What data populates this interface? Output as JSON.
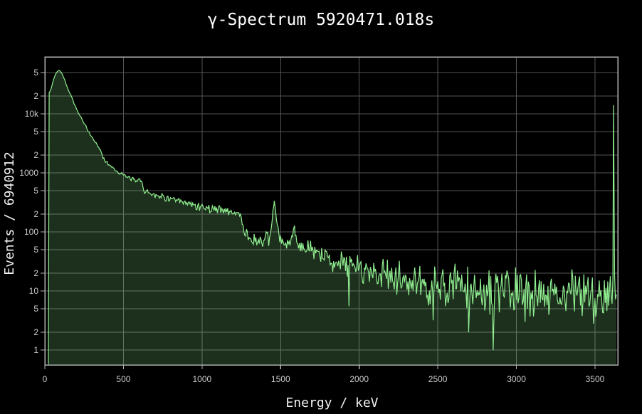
{
  "colors": {
    "background": "#000000",
    "line": "#90ee90",
    "fill": "rgba(144,238,144,0.2)",
    "grid": "#555555",
    "axis_border": "#b3b3b3",
    "tick_text": "#c9c9c9",
    "title_text": "#ffffff"
  },
  "chart_data": {
    "type": "area",
    "title": "γ-Spectrum 5920471.018s",
    "xlabel": "Energy / keV",
    "ylabel": "Events / 6940912",
    "live_time_s": 5920471.018,
    "total_events": 6940912,
    "y_scale": "log",
    "grid": true,
    "legend": "none",
    "xlim": [
      0,
      3645
    ],
    "ylim": [
      0.56,
      92000
    ],
    "x_ticks": [
      0,
      500,
      1000,
      1500,
      2000,
      2500,
      3000,
      3500
    ],
    "y_ticks": [
      {
        "value": 1,
        "label": "1"
      },
      {
        "value": 2,
        "label": "2"
      },
      {
        "value": 5,
        "label": "5"
      },
      {
        "value": 10,
        "label": "10"
      },
      {
        "value": 20,
        "label": "2"
      },
      {
        "value": 50,
        "label": "5"
      },
      {
        "value": 100,
        "label": "100"
      },
      {
        "value": 200,
        "label": "2"
      },
      {
        "value": 500,
        "label": "5"
      },
      {
        "value": 1000,
        "label": "1000"
      },
      {
        "value": 2000,
        "label": "2"
      },
      {
        "value": 5000,
        "label": "5"
      },
      {
        "value": 10000,
        "label": "10k"
      },
      {
        "value": 20000,
        "label": "2"
      },
      {
        "value": 50000,
        "label": "5"
      }
    ],
    "peaks_readout": [
      {
        "energy_kev": 90,
        "counts": 55000,
        "note": "broad low-energy maximum"
      },
      {
        "energy_kev": 1460,
        "counts": 335,
        "note": "sharp peak"
      },
      {
        "energy_kev": 1590,
        "counts": 128,
        "note": "smaller sharp peak"
      },
      {
        "energy_kev": 2610,
        "counts": 29,
        "note": "small bump"
      },
      {
        "energy_kev": 3618,
        "counts": 14000,
        "note": "overflow spike at right edge"
      }
    ],
    "spectrum_envelope_points": [
      [
        22,
        0.58
      ],
      [
        25,
        22000
      ],
      [
        40,
        26500
      ],
      [
        55,
        38000
      ],
      [
        70,
        48500
      ],
      [
        85,
        54500
      ],
      [
        95,
        54000
      ],
      [
        105,
        50000
      ],
      [
        115,
        44000
      ],
      [
        125,
        38500
      ],
      [
        140,
        29000
      ],
      [
        155,
        23500
      ],
      [
        170,
        19500
      ],
      [
        185,
        15200
      ],
      [
        200,
        12400
      ],
      [
        215,
        10000
      ],
      [
        222,
        9300
      ],
      [
        232,
        8600
      ],
      [
        245,
        7200
      ],
      [
        260,
        6200
      ],
      [
        280,
        4800
      ],
      [
        300,
        4000
      ],
      [
        315,
        3500
      ],
      [
        328,
        3120
      ],
      [
        342,
        2700
      ],
      [
        355,
        2350
      ],
      [
        368,
        1900
      ],
      [
        382,
        1620
      ],
      [
        400,
        1450
      ],
      [
        425,
        1270
      ],
      [
        450,
        1120
      ],
      [
        470,
        1030
      ],
      [
        495,
        930
      ],
      [
        520,
        860
      ],
      [
        542,
        795
      ],
      [
        554,
        810
      ],
      [
        565,
        740
      ],
      [
        578,
        705
      ],
      [
        592,
        715
      ],
      [
        605,
        860
      ],
      [
        614,
        700
      ],
      [
        622,
        560
      ],
      [
        635,
        505
      ],
      [
        655,
        470
      ],
      [
        690,
        440
      ],
      [
        730,
        408
      ],
      [
        770,
        378
      ],
      [
        810,
        352
      ],
      [
        860,
        318
      ],
      [
        910,
        298
      ],
      [
        960,
        280
      ],
      [
        1010,
        262
      ],
      [
        1060,
        248
      ],
      [
        1120,
        242
      ],
      [
        1160,
        226
      ],
      [
        1200,
        212
      ],
      [
        1235,
        203
      ],
      [
        1250,
        185
      ],
      [
        1262,
        118
      ],
      [
        1278,
        92
      ],
      [
        1300,
        79
      ],
      [
        1340,
        70
      ],
      [
        1380,
        66
      ],
      [
        1412,
        70
      ],
      [
        1438,
        85
      ],
      [
        1452,
        230
      ],
      [
        1460,
        335
      ],
      [
        1470,
        225
      ],
      [
        1482,
        105
      ],
      [
        1495,
        73
      ],
      [
        1515,
        62
      ],
      [
        1540,
        60
      ],
      [
        1560,
        65
      ],
      [
        1578,
        82
      ],
      [
        1589,
        128
      ],
      [
        1600,
        82
      ],
      [
        1615,
        60
      ],
      [
        1645,
        52
      ],
      [
        1690,
        47
      ],
      [
        1740,
        42
      ],
      [
        1800,
        36
      ],
      [
        1870,
        31
      ],
      [
        1940,
        27.5
      ],
      [
        2010,
        24
      ],
      [
        2080,
        21.5
      ],
      [
        2150,
        19
      ],
      [
        2220,
        16.5
      ],
      [
        2290,
        14.5
      ],
      [
        2360,
        12.8
      ],
      [
        2430,
        11.8
      ],
      [
        2500,
        11.2
      ],
      [
        2560,
        10.8
      ],
      [
        2600,
        13.5
      ],
      [
        2625,
        11.5
      ],
      [
        2660,
        10.2
      ],
      [
        2720,
        9.9
      ],
      [
        2790,
        9.6
      ],
      [
        2860,
        9.4
      ],
      [
        2940,
        9.6
      ],
      [
        3020,
        9.8
      ],
      [
        3100,
        9.4
      ],
      [
        3180,
        9.6
      ],
      [
        3260,
        9.3
      ],
      [
        3340,
        9.5
      ],
      [
        3420,
        9.2
      ],
      [
        3500,
        9.4
      ],
      [
        3570,
        9.6
      ],
      [
        3614,
        10
      ],
      [
        3622,
        11
      ],
      [
        3632,
        9.5
      ],
      [
        3640,
        9.3
      ]
    ],
    "spike_features": [
      {
        "e": 1460,
        "c": 335
      },
      {
        "e": 1589,
        "c": 128
      },
      {
        "e": 1935,
        "c": 5.5
      },
      {
        "e": 2470,
        "c": 3.2
      },
      {
        "e": 2480,
        "c": 26
      },
      {
        "e": 2610,
        "c": 29
      },
      {
        "e": 2696,
        "c": 2.0
      },
      {
        "e": 2852,
        "c": 1.0
      },
      {
        "e": 3055,
        "c": 3.0
      },
      {
        "e": 3490,
        "c": 2.8
      },
      {
        "e": 3618,
        "c": 14000
      }
    ],
    "noise": {
      "seed": 42,
      "amplitude_log10": 1.4,
      "model": "amplitude/sqrt(counts) triangular, applied where counts>4"
    }
  }
}
